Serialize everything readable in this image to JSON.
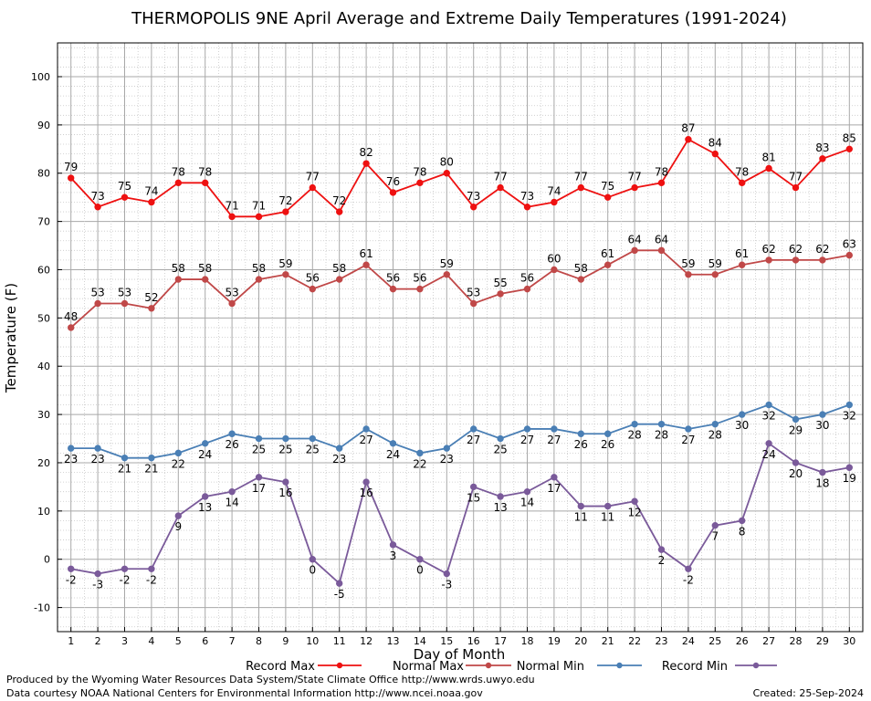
{
  "chart_data": {
    "type": "line",
    "title": "THERMOPOLIS 9NE April Average and Extreme Daily Temperatures (1991-2024)",
    "xlabel": "Day of Month",
    "ylabel": "Temperature (F)",
    "ylim": [
      -15,
      107
    ],
    "xlim": [
      0.5,
      30.5
    ],
    "yticks": [
      -10,
      0,
      10,
      20,
      30,
      40,
      50,
      60,
      70,
      80,
      90,
      100
    ],
    "x": [
      1,
      2,
      3,
      4,
      5,
      6,
      7,
      8,
      9,
      10,
      11,
      12,
      13,
      14,
      15,
      16,
      17,
      18,
      19,
      20,
      21,
      22,
      23,
      24,
      25,
      26,
      27,
      28,
      29,
      30
    ],
    "grid": true,
    "legend_position": "bottom",
    "series": [
      {
        "name": "Record Max",
        "color": "#ee1111",
        "values": [
          79,
          73,
          75,
          74,
          78,
          78,
          71,
          71,
          72,
          77,
          72,
          82,
          76,
          78,
          80,
          73,
          77,
          73,
          74,
          77,
          75,
          77,
          78,
          87,
          84,
          78,
          81,
          77,
          83,
          85
        ]
      },
      {
        "name": "Normal Max",
        "color": "#c04848",
        "values": [
          48,
          53,
          53,
          52,
          58,
          58,
          53,
          58,
          59,
          56,
          58,
          61,
          56,
          56,
          59,
          53,
          55,
          56,
          60,
          58,
          61,
          64,
          64,
          59,
          59,
          61,
          62,
          62,
          62,
          63
        ]
      },
      {
        "name": "Normal Min",
        "color": "#4a7fb5",
        "values": [
          23,
          23,
          21,
          21,
          22,
          24,
          26,
          25,
          25,
          25,
          23,
          27,
          24,
          22,
          23,
          27,
          25,
          27,
          27,
          26,
          26,
          28,
          28,
          27,
          28,
          30,
          32,
          29,
          30,
          32
        ]
      },
      {
        "name": "Record Min",
        "color": "#7a5a9a",
        "values": [
          -2,
          -3,
          -2,
          -2,
          9,
          13,
          14,
          17,
          16,
          0,
          -5,
          16,
          3,
          0,
          -3,
          15,
          13,
          14,
          17,
          11,
          11,
          12,
          2,
          -2,
          7,
          8,
          24,
          20,
          18,
          19
        ]
      }
    ]
  },
  "footer": {
    "line1": "Produced by the Wyoming Water Resources Data System/State Climate Office http://www.wrds.uwyo.edu",
    "line2": "Data courtesy NOAA National Centers for Environmental Information http://www.ncei.noaa.gov",
    "created": "Created: 25-Sep-2024"
  }
}
